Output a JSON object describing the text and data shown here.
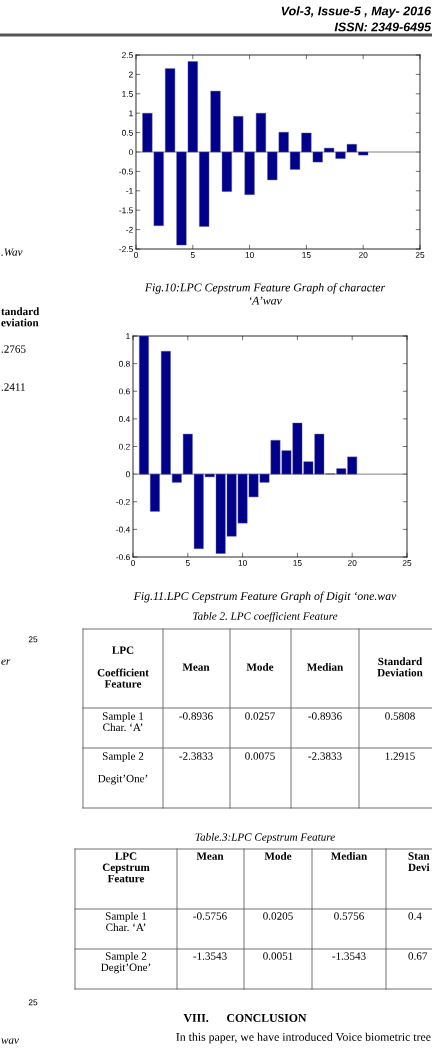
{
  "chart_data": [
    {
      "type": "bar",
      "title": "Fig.10:LPC Cepstrum Feature Graph of character\n‘A’wav",
      "x": [
        1,
        2,
        3,
        4,
        5,
        6,
        7,
        8,
        9,
        10,
        11,
        12,
        13,
        14,
        15,
        16,
        17,
        18,
        19,
        20
      ],
      "values": [
        1.0,
        -1.9,
        2.15,
        -2.4,
        2.33,
        -1.92,
        1.57,
        -1.02,
        0.92,
        -1.1,
        1.0,
        -0.72,
        0.51,
        -0.45,
        0.49,
        -0.26,
        0.1,
        -0.17,
        0.2,
        -0.08
      ],
      "color": "#00008b",
      "xlim": [
        0,
        25
      ],
      "xticks": [
        0,
        5,
        10,
        15,
        20,
        25
      ],
      "ylim": [
        -2.5,
        2.5
      ],
      "yticks": [
        -2.5,
        -2,
        -1.5,
        -1,
        -0.5,
        0,
        0.5,
        1,
        1.5,
        2,
        2.5
      ],
      "ref_lines": [
        {
          "axis": "y",
          "value": 0,
          "color": "#808080"
        }
      ],
      "grid": false,
      "legend": false,
      "annotations": [
        "Vol-3, Issue-5 , May- 2016",
        "ISSN: 2349-6495"
      ]
    },
    {
      "type": "bar",
      "title": "Fig.11.LPC Cepstrum Feature Graph of Digit ‘one.wav",
      "x": [
        1,
        2,
        3,
        4,
        5,
        6,
        7,
        8,
        9,
        10,
        11,
        12,
        13,
        14,
        15,
        16,
        17,
        18,
        19,
        20
      ],
      "values": [
        1.0,
        -0.27,
        0.89,
        -0.06,
        0.29,
        -0.54,
        -0.02,
        -0.575,
        -0.45,
        -0.355,
        -0.165,
        -0.06,
        0.245,
        0.17,
        0.37,
        0.09,
        0.29,
        0.003,
        0.04,
        0.125
      ],
      "color": "#00008b",
      "xlim": [
        0,
        25
      ],
      "xticks": [
        0,
        5,
        10,
        15,
        20,
        25
      ],
      "ylim": [
        -0.6,
        1
      ],
      "yticks": [
        -0.6,
        -0.4,
        -0.2,
        0,
        0.2,
        0.4,
        0.6,
        0.8,
        1
      ],
      "ref_lines": [
        {
          "axis": "y",
          "value": 0,
          "color": "#808080"
        }
      ],
      "grid": false,
      "legend": false,
      "annotations": [
        "Table 2. LPC coefficient Feature",
        "LPC\n\nCoefficient\nFeature",
        "Mean",
        "Mode",
        "Median",
        "Standard\nDeviation",
        "Sample 1\nChar. ‘A’",
        "-0.8936",
        "0.0257",
        "-0.8936",
        "0.5808",
        "Sample 2\n\nDegit’One’",
        "-2.3833",
        "0.0075",
        "-2.3833",
        "1.2915",
        "Table.3:LPC Cepstrum Feature",
        "LPC\nCepstrum\nFeature",
        "Mean",
        "Mode",
        "Median",
        "Stan\nDevi",
        "Sample 1\nChar. ‘A’",
        "-0.5756",
        "0.0205",
        "0.5756",
        "0.4",
        "Sample 2\nDegit’One’",
        "-1.3543",
        "0.0051",
        "-1.3543",
        "0.67",
        "VIII.      CONCLUSION",
        "In this paper, we have introduced Voice biometric tree",
        ".Wav",
        "tandard\neviation",
        ".2765",
        ".2411",
        "25",
        "er",
        "25",
        "wav"
      ]
    }
  ]
}
